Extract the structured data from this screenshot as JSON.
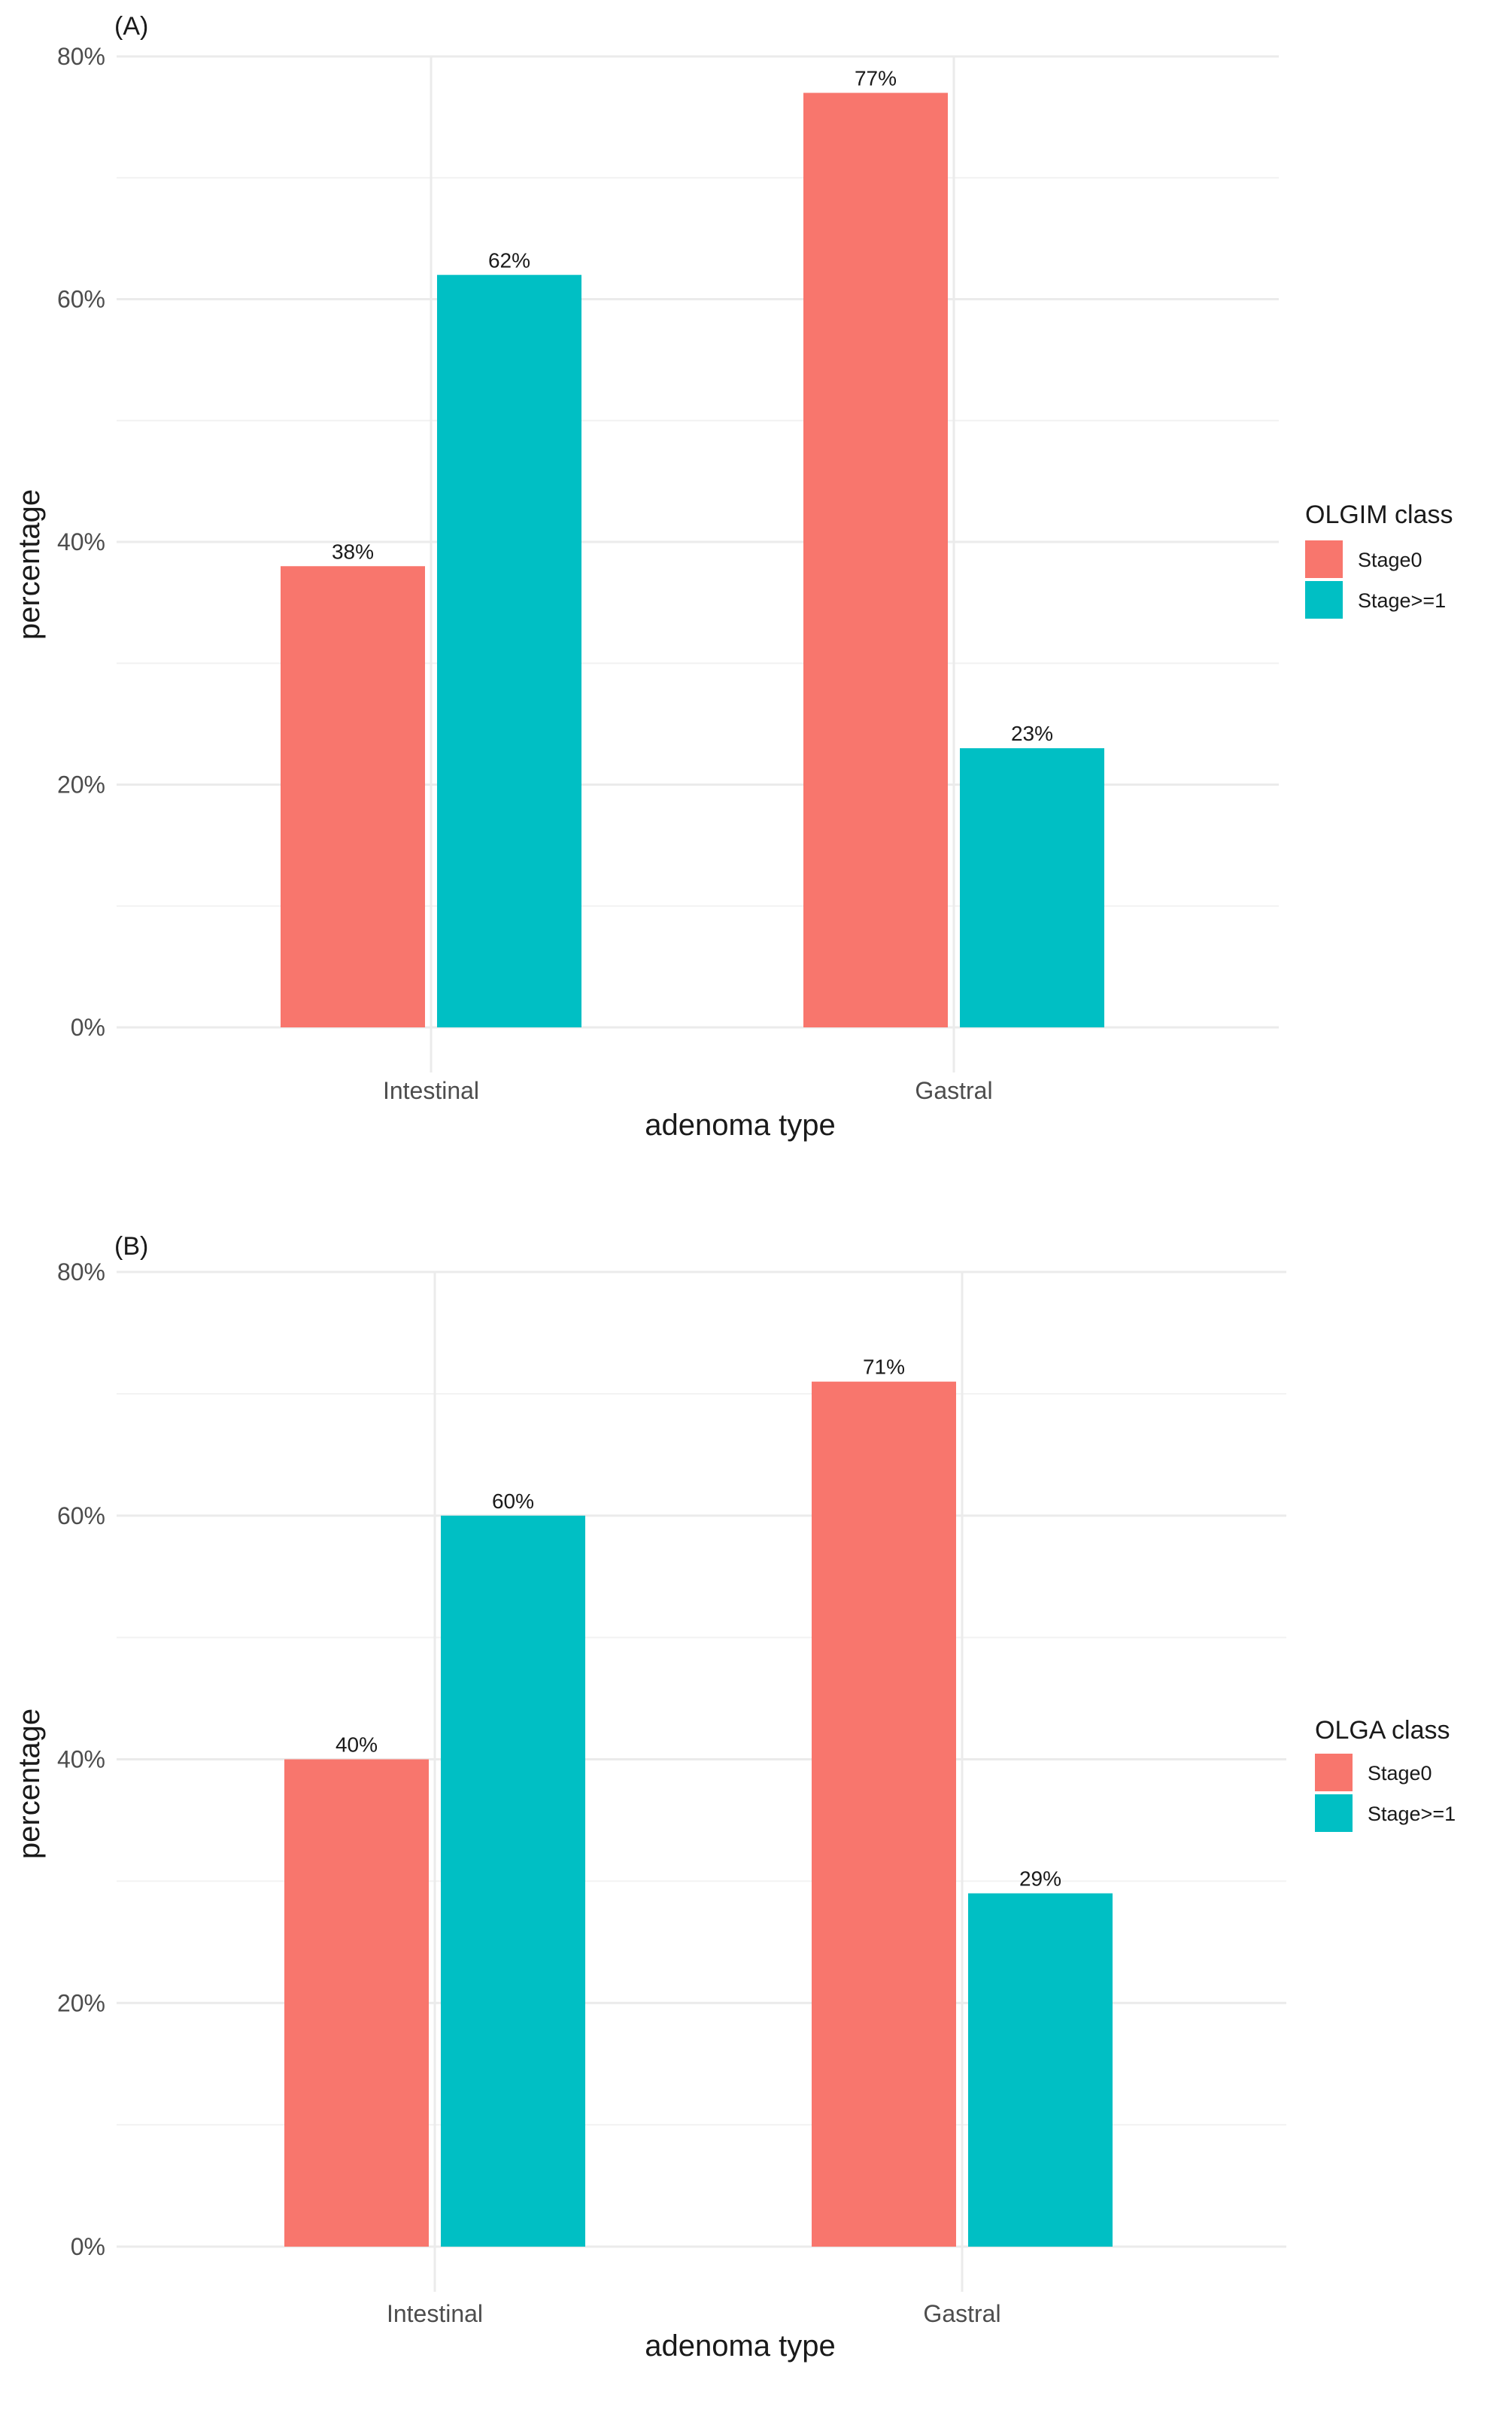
{
  "chart_data": [
    {
      "type": "bar",
      "panel_label": "(A)",
      "categories": [
        "Intestinal",
        "Gastral"
      ],
      "series": [
        {
          "name": "Stage0",
          "values": [
            38,
            77
          ],
          "labels": [
            "38%",
            "77%"
          ],
          "color": "#F8766D"
        },
        {
          "name": "Stage>=1",
          "values": [
            62,
            23
          ],
          "labels": [
            "62%",
            "23%"
          ],
          "color": "#00BFC4"
        }
      ],
      "xlabel": "adenoma type",
      "ylabel": "percentage",
      "ylim": [
        0,
        80
      ],
      "yticks": [
        0,
        20,
        40,
        60,
        80
      ],
      "ytick_labels": [
        "0%",
        "20%",
        "40%",
        "60%",
        "80%"
      ],
      "legend_title": "OLGIM class",
      "legend_position": "right",
      "grid": true
    },
    {
      "type": "bar",
      "panel_label": "(B)",
      "categories": [
        "Intestinal",
        "Gastral"
      ],
      "series": [
        {
          "name": "Stage0",
          "values": [
            40,
            71
          ],
          "labels": [
            "40%",
            "71%"
          ],
          "color": "#F8766D"
        },
        {
          "name": "Stage>=1",
          "values": [
            60,
            29
          ],
          "labels": [
            "60%",
            "29%"
          ],
          "color": "#00BFC4"
        }
      ],
      "xlabel": "adenoma type",
      "ylabel": "percentage",
      "ylim": [
        0,
        80
      ],
      "yticks": [
        0,
        20,
        40,
        60,
        80
      ],
      "ytick_labels": [
        "0%",
        "20%",
        "40%",
        "60%",
        "80%"
      ],
      "legend_title": "OLGA class",
      "legend_position": "right",
      "grid": true
    }
  ]
}
